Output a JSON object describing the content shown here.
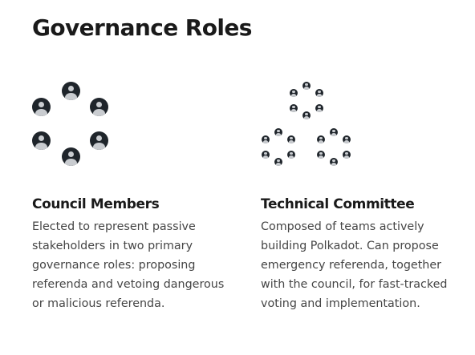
{
  "page": {
    "title": "Governance Roles"
  },
  "roles": [
    {
      "name": "Council Members",
      "description": "Elected to represent passive stakeholders in two primary governance roles: proposing referenda and vetoing dangerous or malicious referenda.",
      "icon": "council-circle-icon"
    },
    {
      "name": "Technical Committee",
      "description": "Composed of teams actively building Polkadot. Can propose emergency referenda, together with the council, for fast-tracked voting and implementation.",
      "icon": "committee-clusters-icon"
    }
  ],
  "colors": {
    "heading": "#1a1a1a",
    "body_text": "#454545",
    "avatar_dark": "#1f252b",
    "avatar_light": "#c9ccd0",
    "background": "#ffffff"
  }
}
